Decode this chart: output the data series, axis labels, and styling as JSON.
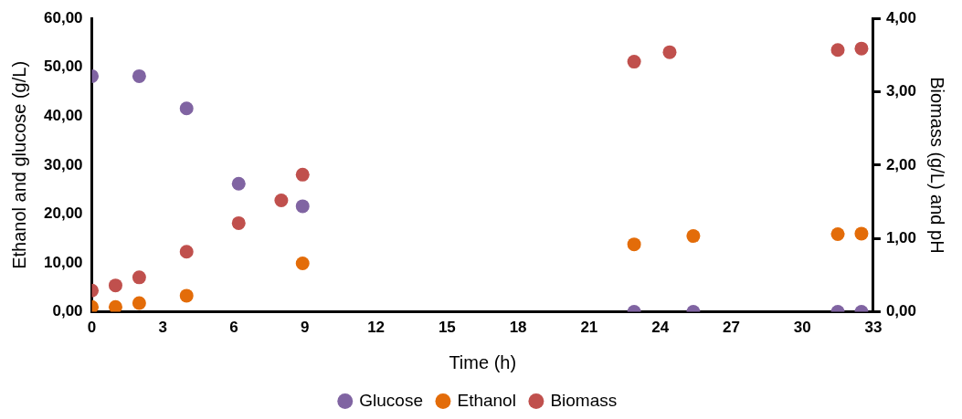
{
  "chart_data": {
    "type": "scatter",
    "xlabel": "Time (h)",
    "ylabel": "Ethanol and glucose (g/L)",
    "y2label": "Biomass (g/L) and pH",
    "xlim": [
      0,
      33
    ],
    "xticks": [
      0,
      3,
      6,
      9,
      12,
      15,
      18,
      21,
      24,
      27,
      30,
      33
    ],
    "ylim": [
      0,
      60
    ],
    "yticks": [
      {
        "value": 0,
        "label": "0,00"
      },
      {
        "value": 10,
        "label": "10,00"
      },
      {
        "value": 20,
        "label": "20,00"
      },
      {
        "value": 30,
        "label": "30,00"
      },
      {
        "value": 40,
        "label": "40,00"
      },
      {
        "value": 50,
        "label": "50,00"
      },
      {
        "value": 60,
        "label": "60,00"
      }
    ],
    "y2lim": [
      0,
      4
    ],
    "y2ticks": [
      {
        "value": 0,
        "label": "0,00"
      },
      {
        "value": 1,
        "label": "1,00"
      },
      {
        "value": 2,
        "label": "2,00"
      },
      {
        "value": 3,
        "label": "3,00"
      },
      {
        "value": 4,
        "label": "4,00"
      }
    ],
    "legend": "bottom",
    "marker": "circle",
    "grid": false,
    "series": [
      {
        "name": "Glucose",
        "color": "#8064a2",
        "x": [
          0,
          2,
          4,
          6.2,
          8.9,
          22.9,
          25.4,
          31.5,
          32.5
        ],
        "values": [
          48.2,
          48.2,
          41.6,
          26.2,
          21.6,
          0,
          0,
          0,
          0
        ]
      },
      {
        "name": "Ethanol",
        "color": "#e36c09",
        "x": [
          0,
          1,
          2,
          4,
          8.9,
          22.9,
          25.4,
          31.5,
          32.5
        ],
        "values": [
          1.0,
          1.0,
          1.8,
          3.3,
          9.9,
          13.8,
          15.5,
          15.9,
          16.0
        ]
      },
      {
        "name": "Biomass",
        "color": "#c0504d",
        "axis": "y2",
        "x": [
          0,
          1,
          2,
          4,
          6.2,
          8,
          8.9,
          22.9,
          24.4,
          31.5,
          32.5
        ],
        "values": [
          0.29,
          0.36,
          0.47,
          0.82,
          1.21,
          1.52,
          1.87,
          3.41,
          3.54,
          3.57,
          3.59
        ]
      }
    ]
  }
}
